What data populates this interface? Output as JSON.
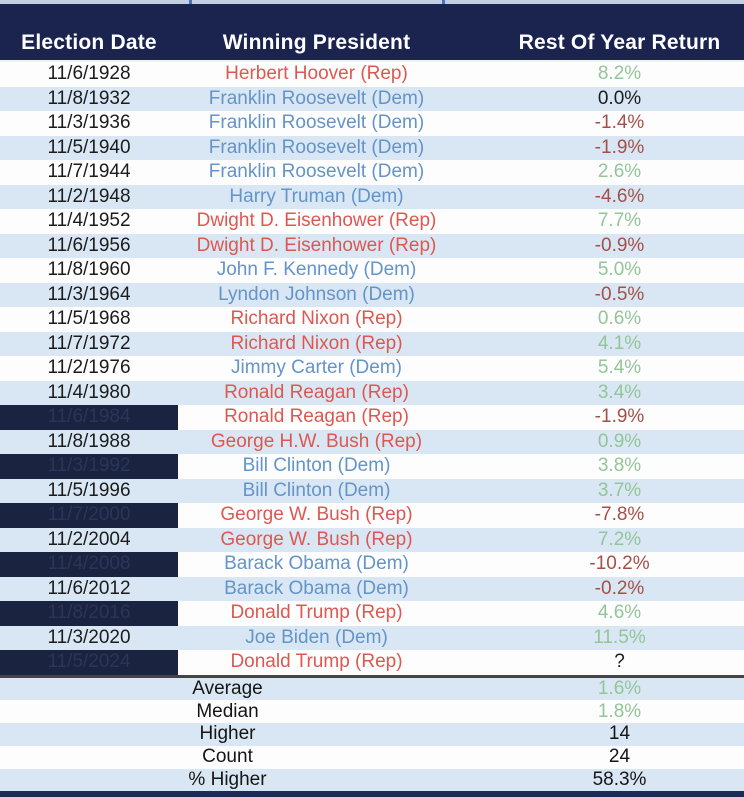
{
  "table": {
    "columns": [
      "Election Date",
      "Winning President",
      "Rest Of Year Return"
    ]
  },
  "rows": [
    {
      "date": "11/6/1928",
      "president": "Herbert Hoover (Rep)",
      "party": "rep",
      "return": "8.2%",
      "sentiment": "positive",
      "redacted": false
    },
    {
      "date": "11/8/1932",
      "president": "Franklin Roosevelt (Dem)",
      "party": "dem",
      "return": "0.0%",
      "sentiment": "neutral",
      "redacted": false
    },
    {
      "date": "11/3/1936",
      "president": "Franklin Roosevelt (Dem)",
      "party": "dem",
      "return": "-1.4%",
      "sentiment": "negative",
      "redacted": false
    },
    {
      "date": "11/5/1940",
      "president": "Franklin Roosevelt (Dem)",
      "party": "dem",
      "return": "-1.9%",
      "sentiment": "negative",
      "redacted": false
    },
    {
      "date": "11/7/1944",
      "president": "Franklin Roosevelt (Dem)",
      "party": "dem",
      "return": "2.6%",
      "sentiment": "positive",
      "redacted": false
    },
    {
      "date": "11/2/1948",
      "president": "Harry Truman (Dem)",
      "party": "dem",
      "return": "-4.6%",
      "sentiment": "negative",
      "redacted": false
    },
    {
      "date": "11/4/1952",
      "president": "Dwight D. Eisenhower (Rep)",
      "party": "rep",
      "return": "7.7%",
      "sentiment": "positive",
      "redacted": false
    },
    {
      "date": "11/6/1956",
      "president": "Dwight D. Eisenhower (Rep)",
      "party": "rep",
      "return": "-0.9%",
      "sentiment": "negative",
      "redacted": false
    },
    {
      "date": "11/8/1960",
      "president": "John F. Kennedy (Dem)",
      "party": "dem",
      "return": "5.0%",
      "sentiment": "positive",
      "redacted": false
    },
    {
      "date": "11/3/1964",
      "president": "Lyndon Johnson (Dem)",
      "party": "dem",
      "return": "-0.5%",
      "sentiment": "negative",
      "redacted": false
    },
    {
      "date": "11/5/1968",
      "president": "Richard Nixon (Rep)",
      "party": "rep",
      "return": "0.6%",
      "sentiment": "positive",
      "redacted": false
    },
    {
      "date": "11/7/1972",
      "president": "Richard Nixon (Rep)",
      "party": "rep",
      "return": "4.1%",
      "sentiment": "positive",
      "redacted": false
    },
    {
      "date": "11/2/1976",
      "president": "Jimmy Carter (Dem)",
      "party": "dem",
      "return": "5.4%",
      "sentiment": "positive",
      "redacted": false
    },
    {
      "date": "11/4/1980",
      "president": "Ronald Reagan (Rep)",
      "party": "rep",
      "return": "3.4%",
      "sentiment": "positive",
      "redacted": false
    },
    {
      "date": "11/6/1984",
      "president": "Ronald Reagan (Rep)",
      "party": "rep",
      "return": "-1.9%",
      "sentiment": "negative",
      "redacted": true
    },
    {
      "date": "11/8/1988",
      "president": "George H.W. Bush (Rep)",
      "party": "rep",
      "return": "0.9%",
      "sentiment": "positive",
      "redacted": false
    },
    {
      "date": "11/3/1992",
      "president": "Bill Clinton (Dem)",
      "party": "dem",
      "return": "3.8%",
      "sentiment": "positive",
      "redacted": true
    },
    {
      "date": "11/5/1996",
      "president": "Bill Clinton (Dem)",
      "party": "dem",
      "return": "3.7%",
      "sentiment": "positive",
      "redacted": false
    },
    {
      "date": "11/7/2000",
      "president": "George W. Bush (Rep)",
      "party": "rep",
      "return": "-7.8%",
      "sentiment": "negative",
      "redacted": true
    },
    {
      "date": "11/2/2004",
      "president": "George W. Bush (Rep)",
      "party": "rep",
      "return": "7.2%",
      "sentiment": "positive",
      "redacted": false
    },
    {
      "date": "11/4/2008",
      "president": "Barack Obama (Dem)",
      "party": "dem",
      "return": "-10.2%",
      "sentiment": "negative",
      "redacted": true
    },
    {
      "date": "11/6/2012",
      "president": "Barack Obama (Dem)",
      "party": "dem",
      "return": "-0.2%",
      "sentiment": "negative",
      "redacted": false
    },
    {
      "date": "11/8/2016",
      "president": "Donald Trump (Rep)",
      "party": "rep",
      "return": "4.6%",
      "sentiment": "positive",
      "redacted": true
    },
    {
      "date": "11/3/2020",
      "president": "Joe Biden (Dem)",
      "party": "dem",
      "return": "11.5%",
      "sentiment": "positive",
      "redacted": false
    },
    {
      "date": "11/5/2024",
      "president": "Donald Trump (Rep)",
      "party": "rep",
      "return": "?",
      "sentiment": "neutral",
      "redacted": true
    }
  ],
  "summary": [
    {
      "label": "Average",
      "value": "1.6%",
      "sentiment": "positive"
    },
    {
      "label": "Median",
      "value": "1.8%",
      "sentiment": "positive"
    },
    {
      "label": "Higher",
      "value": "14",
      "sentiment": "neutral"
    },
    {
      "label": "Count",
      "value": "24",
      "sentiment": "neutral"
    },
    {
      "label": "% Higher",
      "value": "58.3%",
      "sentiment": "neutral"
    }
  ],
  "colors": {
    "header_bg": "#1a244f",
    "header_text": "#ffffff",
    "row_bg": "#fdfdfe",
    "row_alt_bg": "#d9e7f4",
    "date_text": "#1c1c1c",
    "dem_text": "#6494c8",
    "rep_text": "#dc5851",
    "positive_return": "#93c599",
    "negative_return": "#a35048",
    "neutral_return": "#1c1c1c",
    "redacted_block_bg": "#1a2440",
    "redacted_block_text": "#2a3659",
    "summary_divider": "#444444",
    "bottom_strip": "#1c2a55",
    "top_strip": "#c3cfe2"
  },
  "chart_data": {
    "type": "table",
    "columns": [
      "Election Date",
      "Winning President",
      "Rest Of Year Return"
    ],
    "rows": [
      [
        "11/6/1928",
        "Herbert Hoover (Rep)",
        "8.2%"
      ],
      [
        "11/8/1932",
        "Franklin Roosevelt (Dem)",
        "0.0%"
      ],
      [
        "11/3/1936",
        "Franklin Roosevelt (Dem)",
        "-1.4%"
      ],
      [
        "11/5/1940",
        "Franklin Roosevelt (Dem)",
        "-1.9%"
      ],
      [
        "11/7/1944",
        "Franklin Roosevelt (Dem)",
        "2.6%"
      ],
      [
        "11/2/1948",
        "Harry Truman (Dem)",
        "-4.6%"
      ],
      [
        "11/4/1952",
        "Dwight D. Eisenhower (Rep)",
        "7.7%"
      ],
      [
        "11/6/1956",
        "Dwight D. Eisenhower (Rep)",
        "-0.9%"
      ],
      [
        "11/8/1960",
        "John F. Kennedy (Dem)",
        "5.0%"
      ],
      [
        "11/3/1964",
        "Lyndon Johnson (Dem)",
        "-0.5%"
      ],
      [
        "11/5/1968",
        "Richard Nixon (Rep)",
        "0.6%"
      ],
      [
        "11/7/1972",
        "Richard Nixon (Rep)",
        "4.1%"
      ],
      [
        "11/2/1976",
        "Jimmy Carter (Dem)",
        "5.4%"
      ],
      [
        "11/4/1980",
        "Ronald Reagan (Rep)",
        "3.4%"
      ],
      [
        "11/6/1984",
        "Ronald Reagan (Rep)",
        "-1.9%"
      ],
      [
        "11/8/1988",
        "George H.W. Bush (Rep)",
        "0.9%"
      ],
      [
        "11/3/1992",
        "Bill Clinton (Dem)",
        "3.8%"
      ],
      [
        "11/5/1996",
        "Bill Clinton (Dem)",
        "3.7%"
      ],
      [
        "11/7/2000",
        "George W. Bush (Rep)",
        "-7.8%"
      ],
      [
        "11/2/2004",
        "George W. Bush (Rep)",
        "7.2%"
      ],
      [
        "11/4/2008",
        "Barack Obama (Dem)",
        "-10.2%"
      ],
      [
        "11/6/2012",
        "Barack Obama (Dem)",
        "-0.2%"
      ],
      [
        "11/8/2016",
        "Donald Trump (Rep)",
        "4.6%"
      ],
      [
        "11/3/2020",
        "Joe Biden (Dem)",
        "11.5%"
      ],
      [
        "11/5/2024",
        "Donald Trump (Rep)",
        "?"
      ]
    ],
    "summary": {
      "Average": "1.6%",
      "Median": "1.8%",
      "Higher": "14",
      "Count": "24",
      "% Higher": "58.3%"
    }
  }
}
